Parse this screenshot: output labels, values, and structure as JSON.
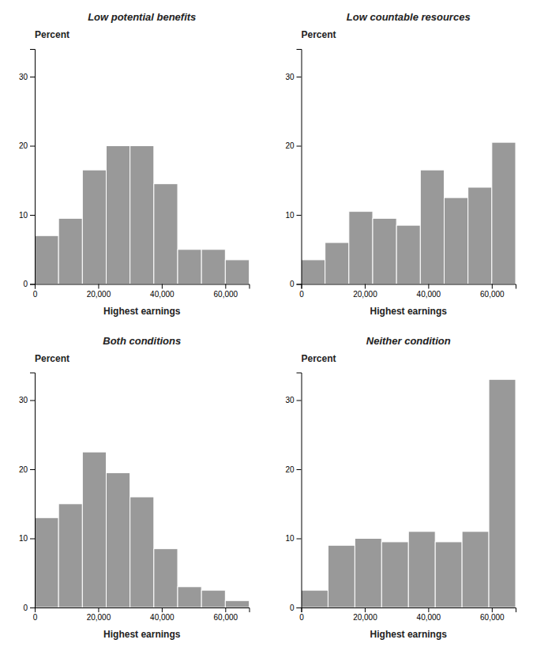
{
  "chart_data": [
    {
      "type": "histogram",
      "title": "Low potential benefits",
      "xlabel": "Highest earnings",
      "ylabel": "Percent",
      "bins": [
        0,
        7500,
        15000,
        22500,
        30000,
        37500,
        45000,
        52500,
        60000,
        67500
      ],
      "values": [
        7.0,
        9.5,
        16.5,
        20.0,
        20.0,
        14.5,
        5.0,
        5.0,
        3.5
      ],
      "color": "#999999",
      "xlim": [
        0,
        67500
      ],
      "xticks": [
        0,
        {
          "value": 20000,
          "label": "20,000"
        },
        {
          "value": 40000,
          "label": "40,000"
        },
        {
          "value": 60000,
          "label": "60,000"
        }
      ],
      "ylim": [
        0,
        34
      ],
      "yticks": [
        0,
        10,
        20,
        30
      ]
    },
    {
      "type": "histogram",
      "title": "Low countable resources",
      "xlabel": "Highest earnings",
      "ylabel": "Percent",
      "bins": [
        0,
        7500,
        15000,
        22500,
        30000,
        37500,
        45000,
        52500,
        60000,
        67500
      ],
      "values": [
        3.5,
        6.0,
        10.5,
        9.5,
        8.5,
        16.5,
        12.5,
        14.0,
        20.5
      ],
      "color": "#999999",
      "xlim": [
        0,
        67500
      ],
      "xticks": [
        0,
        {
          "value": 20000,
          "label": "20,000"
        },
        {
          "value": 40000,
          "label": "40,000"
        },
        {
          "value": 60000,
          "label": "60,000"
        }
      ],
      "ylim": [
        0,
        34
      ],
      "yticks": [
        0,
        10,
        20,
        30
      ]
    },
    {
      "type": "histogram",
      "title": "Both conditions",
      "xlabel": "Highest earnings",
      "ylabel": "Percent",
      "bins": [
        0,
        7500,
        15000,
        22500,
        30000,
        37500,
        45000,
        52500,
        60000,
        67500
      ],
      "values": [
        13.0,
        15.0,
        22.5,
        19.5,
        16.0,
        8.5,
        3.0,
        2.5,
        1.0
      ],
      "color": "#999999",
      "xlim": [
        0,
        67500
      ],
      "xticks": [
        0,
        {
          "value": 20000,
          "label": "20,000"
        },
        {
          "value": 40000,
          "label": "40,000"
        },
        {
          "value": 60000,
          "label": "60,000"
        }
      ],
      "ylim": [
        0,
        34
      ],
      "yticks": [
        0,
        10,
        20,
        30
      ]
    },
    {
      "type": "histogram",
      "title": "Neither condition",
      "xlabel": "Highest earnings",
      "ylabel": "Percent",
      "bins": [
        0,
        8437.5,
        16875,
        25312.5,
        33750,
        42187.5,
        50625,
        59062.5,
        67500
      ],
      "values": [
        2.5,
        9.0,
        10.0,
        9.5,
        11.0,
        9.5,
        11.0,
        33.0
      ],
      "color": "#999999",
      "xlim": [
        0,
        67500
      ],
      "xticks": [
        0,
        {
          "value": 20000,
          "label": "20,000"
        },
        {
          "value": 40000,
          "label": "40,000"
        },
        {
          "value": 60000,
          "label": "60,000"
        }
      ],
      "ylim": [
        0,
        34
      ],
      "yticks": [
        0,
        10,
        20,
        30
      ]
    }
  ]
}
